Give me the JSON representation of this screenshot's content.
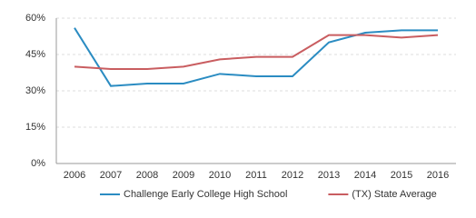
{
  "chart_data": {
    "type": "line",
    "categories": [
      "2006",
      "2007",
      "2008",
      "2009",
      "2010",
      "2011",
      "2012",
      "2013",
      "2014",
      "2015",
      "2016"
    ],
    "series": [
      {
        "name": "Challenge Early College High School",
        "color": "#2b8cc2",
        "values": [
          56,
          32,
          33,
          33,
          37,
          36,
          36,
          50,
          54,
          55,
          55
        ]
      },
      {
        "name": "(TX) State Average",
        "color": "#c95d60",
        "values": [
          40,
          39,
          39,
          40,
          43,
          44,
          44,
          53,
          53,
          52,
          53
        ]
      }
    ],
    "ylim": [
      0,
      60
    ],
    "yticks": [
      {
        "value": 0,
        "label": "0%"
      },
      {
        "value": 15,
        "label": "15%"
      },
      {
        "value": 30,
        "label": "30%"
      },
      {
        "value": 45,
        "label": "45%"
      },
      {
        "value": 60,
        "label": "60%"
      }
    ],
    "grid": true,
    "legend": "bottom"
  }
}
